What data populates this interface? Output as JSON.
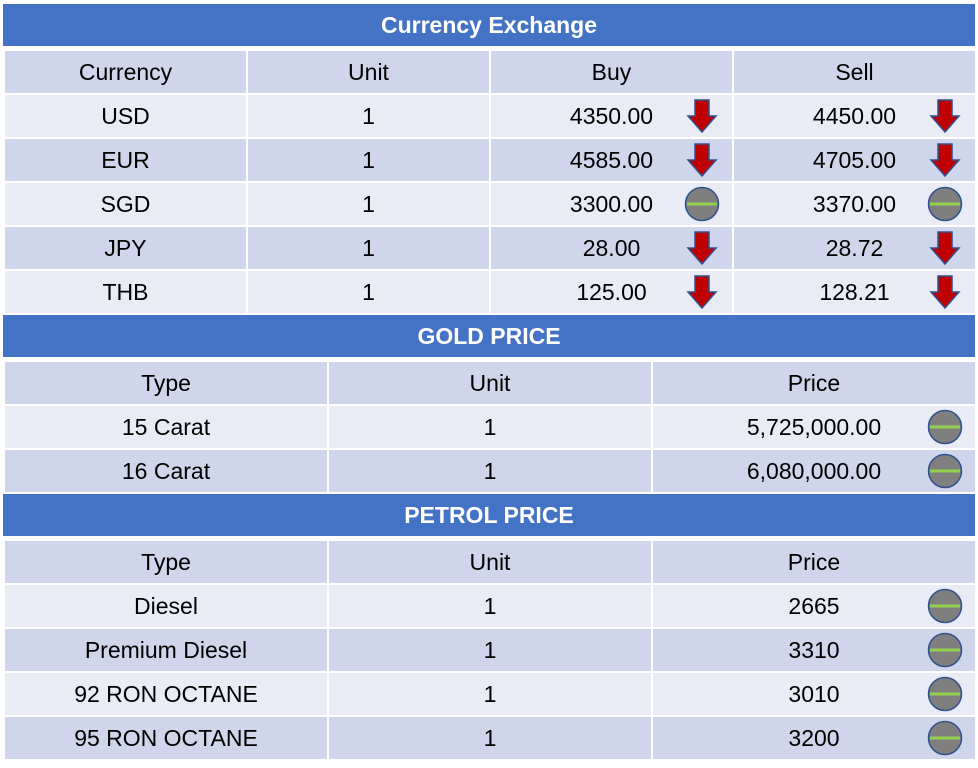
{
  "colors": {
    "header_bg": "#4472C4",
    "row_light": "#E9EBF5",
    "row_dark": "#CFD5EA",
    "arrow_down": "#C00000",
    "neutral_circle": "#7F7F7F",
    "neutral_line": "#92D050"
  },
  "currency": {
    "title": "Currency Exchange",
    "headers": [
      "Currency",
      "Unit",
      "Buy",
      "Sell"
    ],
    "rows": [
      {
        "currency": "USD",
        "unit": "1",
        "buy": "4350.00",
        "buy_icon": "down-arrow-icon",
        "sell": "4450.00",
        "sell_icon": "down-arrow-icon"
      },
      {
        "currency": "EUR",
        "unit": "1",
        "buy": "4585.00",
        "buy_icon": "down-arrow-icon",
        "sell": "4705.00",
        "sell_icon": "down-arrow-icon"
      },
      {
        "currency": "SGD",
        "unit": "1",
        "buy": "3300.00",
        "buy_icon": "unchanged-icon",
        "sell": "3370.00",
        "sell_icon": "unchanged-icon"
      },
      {
        "currency": "JPY",
        "unit": "1",
        "buy": "28.00",
        "buy_icon": "down-arrow-icon",
        "sell": "28.72",
        "sell_icon": "down-arrow-icon"
      },
      {
        "currency": "THB",
        "unit": "1",
        "buy": "125.00",
        "buy_icon": "down-arrow-icon",
        "sell": "128.21",
        "sell_icon": "down-arrow-icon"
      }
    ]
  },
  "gold": {
    "title": "GOLD PRICE",
    "headers": [
      "Type",
      "Unit",
      "Price"
    ],
    "rows": [
      {
        "type": "15 Carat",
        "unit": "1",
        "price": "5,725,000.00",
        "icon": "unchanged-icon"
      },
      {
        "type": "16 Carat",
        "unit": "1",
        "price": "6,080,000.00",
        "icon": "unchanged-icon"
      }
    ]
  },
  "petrol": {
    "title": "PETROL PRICE",
    "headers": [
      "Type",
      "Unit",
      "Price"
    ],
    "rows": [
      {
        "type": "Diesel",
        "unit": "1",
        "price": "2665",
        "icon": "unchanged-icon"
      },
      {
        "type": "Premium Diesel",
        "unit": "1",
        "price": "3310",
        "icon": "unchanged-icon"
      },
      {
        "type": "92 RON OCTANE",
        "unit": "1",
        "price": "3010",
        "icon": "unchanged-icon"
      },
      {
        "type": "95 RON OCTANE",
        "unit": "1",
        "price": "3200",
        "icon": "unchanged-icon"
      }
    ]
  }
}
